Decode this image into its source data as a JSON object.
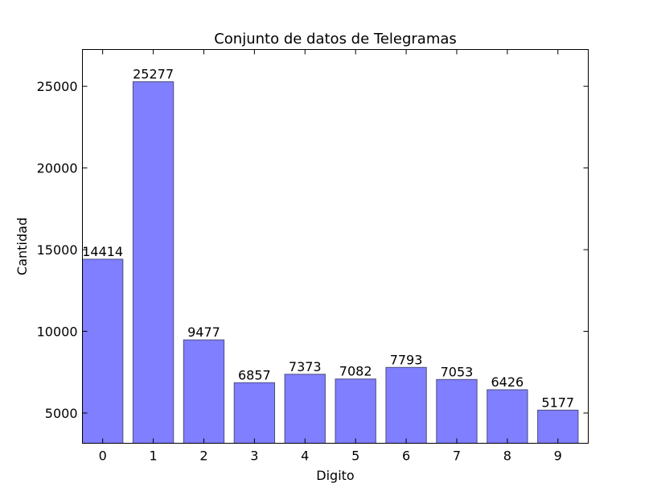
{
  "chart_data": {
    "type": "bar",
    "title": "Conjunto de datos de Telegramas",
    "xlabel": "Digito",
    "ylabel": "Cantidad",
    "categories": [
      "0",
      "1",
      "2",
      "3",
      "4",
      "5",
      "6",
      "7",
      "8",
      "9"
    ],
    "values": [
      14414,
      25277,
      9477,
      6857,
      7373,
      7082,
      7793,
      7053,
      6426,
      5177
    ],
    "data_labels": [
      "14414",
      "25277",
      "9477",
      "6857",
      "7373",
      "7082",
      "7793",
      "7053",
      "6426",
      "5177"
    ],
    "ylim": [
      3150,
      27250
    ],
    "yticks": [
      5000,
      10000,
      15000,
      20000,
      25000
    ],
    "ytick_labels": [
      "5000",
      "10000",
      "15000",
      "20000",
      "25000"
    ],
    "grid": false,
    "colors": {
      "bar_fill": "#7f7fff",
      "bar_edge": "#4d4d80"
    }
  }
}
